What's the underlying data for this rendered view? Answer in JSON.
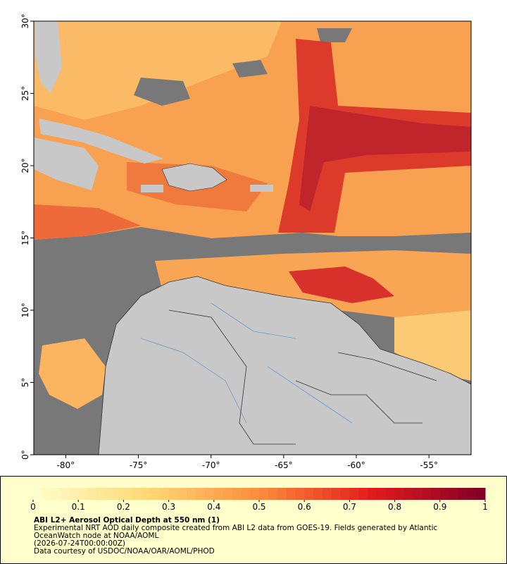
{
  "map": {
    "x_axis": {
      "lim": [
        -82.2,
        -52.1
      ],
      "ticks": [
        {
          "value": -80,
          "label": "-80°"
        },
        {
          "value": -75,
          "label": "-75°"
        },
        {
          "value": -70,
          "label": "-70°"
        },
        {
          "value": -65,
          "label": "-65°"
        },
        {
          "value": -60,
          "label": "-60°"
        },
        {
          "value": -55,
          "label": "-55°"
        }
      ]
    },
    "y_axis": {
      "lim": [
        0,
        30
      ],
      "ticks": [
        {
          "value": 0,
          "label": "0°"
        },
        {
          "value": 5,
          "label": "5°"
        },
        {
          "value": 10,
          "label": "10°"
        },
        {
          "value": 15,
          "label": "15°"
        },
        {
          "value": 20,
          "label": "20°"
        },
        {
          "value": 25,
          "label": "25°"
        },
        {
          "value": 30,
          "label": "30°"
        }
      ]
    }
  },
  "colorbar": {
    "lim": [
      0,
      1
    ],
    "ticks": [
      0,
      0.1,
      0.2,
      0.3,
      0.4,
      0.5,
      0.6,
      0.7,
      0.8,
      0.9,
      1
    ]
  },
  "footer": {
    "title": "ABI L2+ Aerosol Optical Depth at 550 nm (1)",
    "description": "Experimental NRT AOD daily composite created from ABI L2 data from GOES-19. Fields generated by Atlantic OceanWatch node at NOAA/AOML",
    "date": "(2026-07-24T00:00:00Z)",
    "credit": "Data courtesy of USDOC/NOAA/OAR/AOML/PHOD"
  }
}
